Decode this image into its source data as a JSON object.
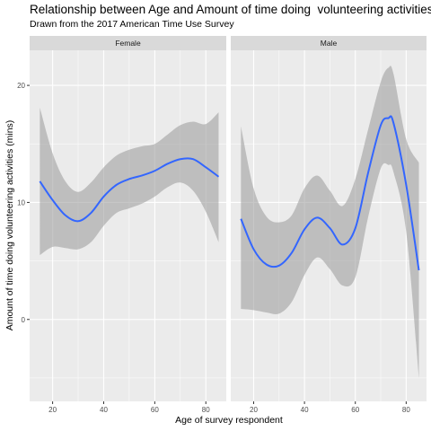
{
  "chart_title": "Relationship between Age and Amount of time doing  volunteering activities",
  "chart_subtitle": "Drawn from the 2017 American Time Use Survey",
  "chart_data": {
    "type": "line",
    "title": "Relationship between Age and Amount of time doing  volunteering activities",
    "subtitle": "Drawn from the 2017 American Time Use Survey",
    "xlabel": "Age of survey respondent",
    "ylabel": "Amount of time doing volunteering activities (mins)",
    "xlim": [
      11,
      88
    ],
    "ylim": [
      -7,
      23
    ],
    "x_ticks": [
      20,
      40,
      60,
      80
    ],
    "y_ticks": [
      0,
      10,
      20
    ],
    "grid": true,
    "legend": "none",
    "line_color": "#3366FF",
    "band_color": "#999999",
    "panel_color": "#EBEBEB",
    "strip_color": "#D9D9D9",
    "panels": [
      {
        "name": "Female",
        "x": [
          15,
          20,
          25,
          30,
          35,
          40,
          45,
          50,
          55,
          60,
          65,
          70,
          75,
          80,
          85
        ],
        "y": [
          11.8,
          10.2,
          8.9,
          8.4,
          9.1,
          10.5,
          11.5,
          12.0,
          12.3,
          12.7,
          13.3,
          13.7,
          13.7,
          13.0,
          12.2
        ],
        "lower": [
          5.5,
          6.2,
          6.1,
          6.0,
          6.6,
          8.0,
          9.1,
          9.5,
          9.9,
          10.5,
          11.3,
          11.7,
          11.0,
          9.2,
          6.6
        ],
        "upper": [
          18.1,
          14.2,
          11.8,
          10.9,
          11.7,
          13.0,
          14.0,
          14.5,
          14.8,
          15.0,
          15.8,
          16.6,
          16.9,
          16.7,
          17.7
        ]
      },
      {
        "name": "Male",
        "x": [
          15,
          20,
          25,
          30,
          35,
          40,
          45,
          50,
          55,
          60,
          65,
          70,
          73,
          75,
          80,
          85
        ],
        "y": [
          8.6,
          6.0,
          4.7,
          4.6,
          5.7,
          7.7,
          8.7,
          7.8,
          6.4,
          7.8,
          12.5,
          16.6,
          17.2,
          16.8,
          11.5,
          4.2
        ],
        "lower": [
          0.9,
          0.8,
          0.6,
          0.5,
          1.5,
          3.8,
          5.3,
          4.3,
          2.9,
          3.6,
          8.7,
          12.9,
          13.2,
          12.6,
          7.5,
          -5.0
        ],
        "upper": [
          16.5,
          11.2,
          8.8,
          8.3,
          8.9,
          11.2,
          12.3,
          11.0,
          9.7,
          12.0,
          16.2,
          20.3,
          21.5,
          21.0,
          15.4,
          13.4
        ]
      }
    ]
  }
}
